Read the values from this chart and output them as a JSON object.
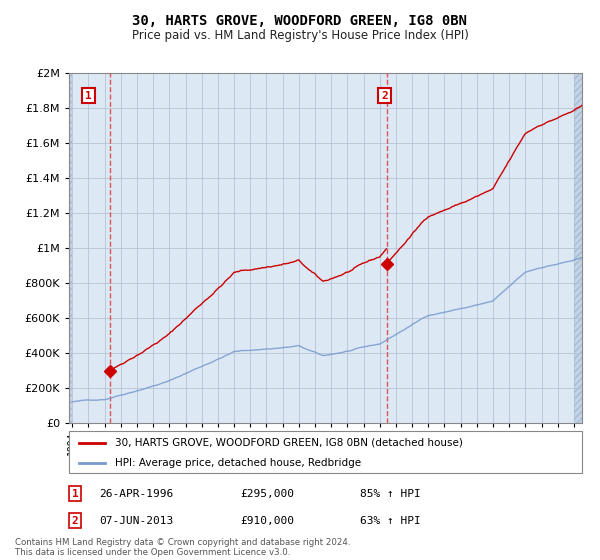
{
  "title": "30, HARTS GROVE, WOODFORD GREEN, IG8 0BN",
  "subtitle": "Price paid vs. HM Land Registry's House Price Index (HPI)",
  "red_line_color": "#cc0000",
  "blue_line_color": "#7799cc",
  "marker_color": "#cc0000",
  "sale1_x": 1996.32,
  "sale1_y": 295000,
  "sale2_x": 2013.44,
  "sale2_y": 910000,
  "xmin": 1993.8,
  "xmax": 2025.5,
  "ymin": 0,
  "ymax": 2000000,
  "yticks": [
    0,
    200000,
    400000,
    600000,
    800000,
    1000000,
    1200000,
    1400000,
    1600000,
    1800000,
    2000000
  ],
  "ytick_labels": [
    "£0",
    "£200K",
    "£400K",
    "£600K",
    "£800K",
    "£1M",
    "£1.2M",
    "£1.4M",
    "£1.6M",
    "£1.8M",
    "£2M"
  ],
  "xticks": [
    1994,
    1995,
    1996,
    1997,
    1998,
    1999,
    2000,
    2001,
    2002,
    2003,
    2004,
    2005,
    2006,
    2007,
    2008,
    2009,
    2010,
    2011,
    2012,
    2013,
    2014,
    2015,
    2016,
    2017,
    2018,
    2019,
    2020,
    2021,
    2022,
    2023,
    2024,
    2025
  ],
  "legend_label1": "30, HARTS GROVE, WOODFORD GREEN, IG8 0BN (detached house)",
  "legend_label2": "HPI: Average price, detached house, Redbridge",
  "annotation1_label": "1",
  "annotation1_date": "26-APR-1996",
  "annotation1_price": "£295,000",
  "annotation1_hpi": "85% ↑ HPI",
  "annotation2_label": "2",
  "annotation2_date": "07-JUN-2013",
  "annotation2_price": "£910,000",
  "annotation2_hpi": "63% ↑ HPI",
  "footer": "Contains HM Land Registry data © Crown copyright and database right 2024.\nThis data is licensed under the Open Government Licence v3.0."
}
